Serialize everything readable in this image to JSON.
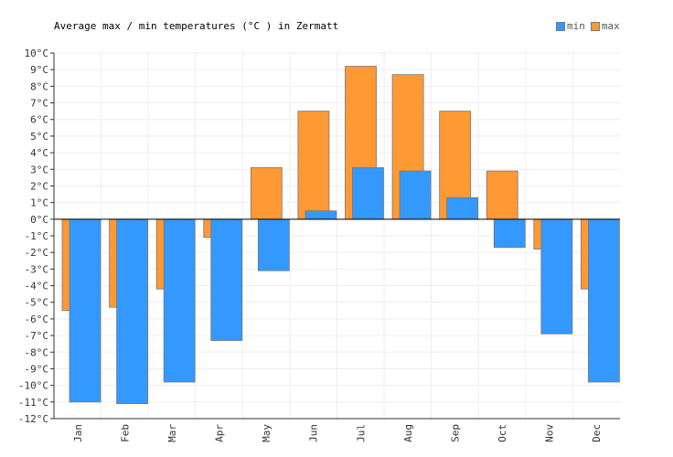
{
  "chart_data": {
    "type": "bar",
    "title": "Average max / min temperatures (°C ) in Zermatt",
    "categories": [
      "Jan",
      "Feb",
      "Mar",
      "Apr",
      "May",
      "Jun",
      "Jul",
      "Aug",
      "Sep",
      "Oct",
      "Nov",
      "Dec"
    ],
    "series": [
      {
        "name": "max",
        "color": "#ff9933",
        "values": [
          -5.5,
          -5.3,
          -4.2,
          -1.1,
          3.1,
          6.5,
          9.2,
          8.7,
          6.5,
          2.9,
          -1.8,
          -4.2
        ]
      },
      {
        "name": "min",
        "color": "#3399ff",
        "values": [
          -11.0,
          -11.1,
          -9.8,
          -7.3,
          -3.1,
          0.5,
          3.1,
          2.9,
          1.3,
          -1.7,
          -6.9,
          -9.8
        ]
      }
    ],
    "y_ticks": [
      "10°C",
      "9°C",
      "8°C",
      "7°C",
      "6°C",
      "5°C",
      "4°C",
      "3°C",
      "2°C",
      "1°C",
      "0°C",
      "-1°C",
      "-2°C",
      "-3°C",
      "-4°C",
      "-5°C",
      "-6°C",
      "-7°C",
      "-8°C",
      "-9°C",
      "-10°C",
      "-11°C",
      "-12°C"
    ],
    "ylim": [
      -12,
      10
    ],
    "grid": true,
    "legend_position": "top-right"
  }
}
